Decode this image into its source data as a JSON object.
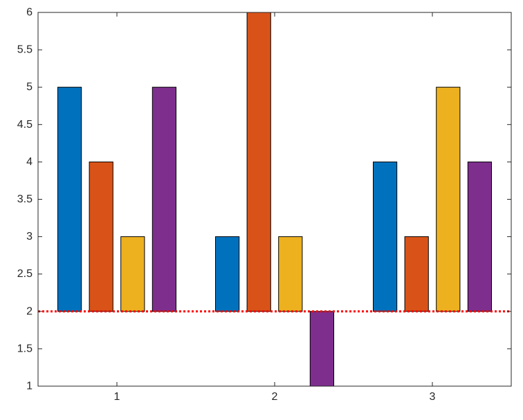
{
  "chart_data": {
    "type": "bar",
    "categories": [
      "1",
      "2",
      "3"
    ],
    "series": [
      {
        "color": "#0072BD",
        "values": [
          5,
          3,
          4
        ]
      },
      {
        "color": "#D95319",
        "values": [
          4,
          6,
          3
        ]
      },
      {
        "color": "#EDB120",
        "values": [
          3,
          3,
          5
        ]
      },
      {
        "color": "#7E2F8E",
        "values": [
          5,
          1,
          4
        ]
      }
    ],
    "baseline": 2,
    "baseline_style": {
      "color": "#FF0000",
      "line": "dotted"
    },
    "xlim": [
      0.5,
      3.5
    ],
    "ylim": [
      1,
      6
    ],
    "yticks": [
      "1",
      "1.5",
      "2",
      "2.5",
      "3",
      "3.5",
      "4",
      "4.5",
      "5",
      "5.5",
      "6"
    ],
    "title": "",
    "xlabel": "",
    "ylabel": "",
    "grid": false,
    "legend": false
  }
}
